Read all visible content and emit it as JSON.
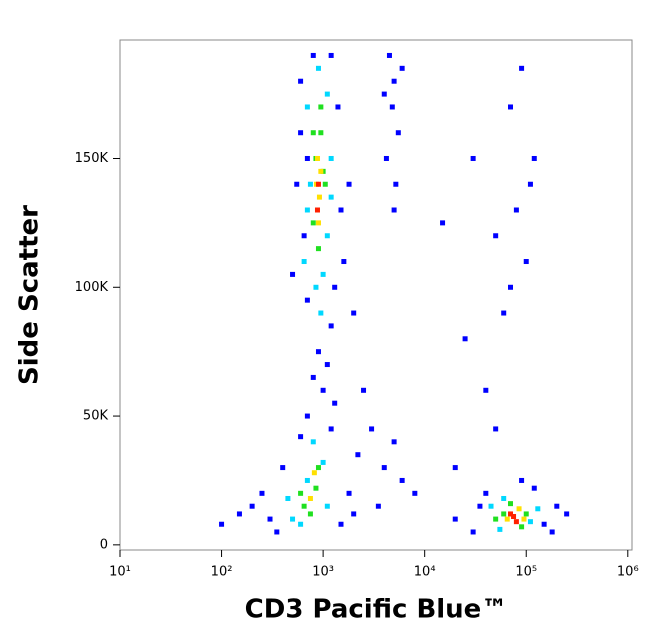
{
  "chart_data": {
    "type": "scatter",
    "x_label": "CD3 Pacific Blue™",
    "y_label": "Side Scatter",
    "x_log": true,
    "xlim": [
      10,
      1100000
    ],
    "xticks": [
      {
        "value": 10,
        "label": "10¹"
      },
      {
        "value": 100,
        "label": "10²"
      },
      {
        "value": 1000,
        "label": "10³"
      },
      {
        "value": 10000,
        "label": "10⁴"
      },
      {
        "value": 100000,
        "label": "10⁵"
      },
      {
        "value": 1000000,
        "label": "10⁶"
      }
    ],
    "ylim": [
      -2000,
      196000
    ],
    "yticks": [
      0,
      {
        "value": 50000,
        "label": "50K"
      },
      {
        "value": 100000,
        "label": "100K"
      },
      {
        "value": 150000,
        "label": "150K"
      }
    ],
    "series": [
      {
        "color": "#0000ff",
        "x": [
          600,
          700,
          650,
          550,
          1400,
          1500,
          1300,
          700,
          1200,
          900,
          1100,
          800,
          1000,
          1300,
          700,
          1600,
          500,
          600,
          1200,
          800,
          2000,
          1800,
          2500,
          3000,
          2200,
          4000,
          6000,
          8000,
          3500,
          5000,
          4500,
          5000,
          4800,
          5500,
          4200,
          5200,
          5000,
          6000,
          4000,
          300,
          250,
          400,
          350,
          200,
          1500,
          1800,
          1200,
          100,
          150,
          2000,
          600,
          20000,
          30000,
          150000,
          200000,
          40000,
          120000,
          250000,
          35000,
          180000,
          90000,
          30000,
          50000,
          70000,
          80000,
          100000,
          60000,
          40000,
          25000,
          120000,
          90000,
          50000,
          20000,
          110000,
          70000,
          15000
        ],
        "values": [
          180000,
          150000,
          120000,
          140000,
          170000,
          130000,
          100000,
          95000,
          85000,
          75000,
          70000,
          65000,
          60000,
          55000,
          50000,
          110000,
          105000,
          160000,
          190000,
          190000,
          90000,
          140000,
          60000,
          45000,
          35000,
          30000,
          25000,
          20000,
          15000,
          40000,
          190000,
          180000,
          170000,
          160000,
          150000,
          140000,
          130000,
          185000,
          175000,
          10000,
          20000,
          30000,
          5000,
          15000,
          8000,
          20000,
          45000,
          8000,
          12000,
          12000,
          42000,
          10000,
          5000,
          8000,
          15000,
          20000,
          22000,
          12000,
          15000,
          5000,
          25000,
          150000,
          120000,
          170000,
          130000,
          110000,
          90000,
          60000,
          80000,
          150000,
          185000,
          45000,
          30000,
          140000,
          100000,
          125000
        ]
      },
      {
        "color": "#00d8ff",
        "x": [
          700,
          900,
          1100,
          750,
          1200,
          650,
          1100,
          850,
          950,
          700,
          1000,
          1200,
          500,
          700,
          1100,
          800,
          450,
          1000,
          600,
          45000,
          110000,
          55000,
          130000,
          60000
        ],
        "values": [
          170000,
          185000,
          175000,
          140000,
          150000,
          110000,
          120000,
          100000,
          90000,
          130000,
          105000,
          135000,
          10000,
          25000,
          15000,
          40000,
          18000,
          32000,
          8000,
          15000,
          9000,
          6000,
          14000,
          18000
        ]
      },
      {
        "color": "#20e020",
        "x": [
          800,
          950,
          850,
          1000,
          800,
          900,
          950,
          1050,
          650,
          850,
          750,
          900,
          600,
          60000,
          100000,
          70000,
          50000,
          90000
        ],
        "values": [
          160000,
          170000,
          150000,
          145000,
          125000,
          115000,
          160000,
          140000,
          15000,
          22000,
          12000,
          30000,
          20000,
          12000,
          12000,
          16000,
          10000,
          7000
        ]
      },
      {
        "color": "#ffe000",
        "x": [
          880,
          920,
          860,
          900,
          950,
          750,
          820,
          65000,
          85000,
          95000
        ],
        "values": [
          150000,
          135000,
          140000,
          125000,
          145000,
          18000,
          28000,
          10000,
          14000,
          10000
        ]
      },
      {
        "color": "#ff2000",
        "x": [
          900,
          880,
          75000,
          80000,
          70000
        ],
        "values": [
          140000,
          130000,
          11000,
          9000,
          12000
        ]
      }
    ]
  }
}
